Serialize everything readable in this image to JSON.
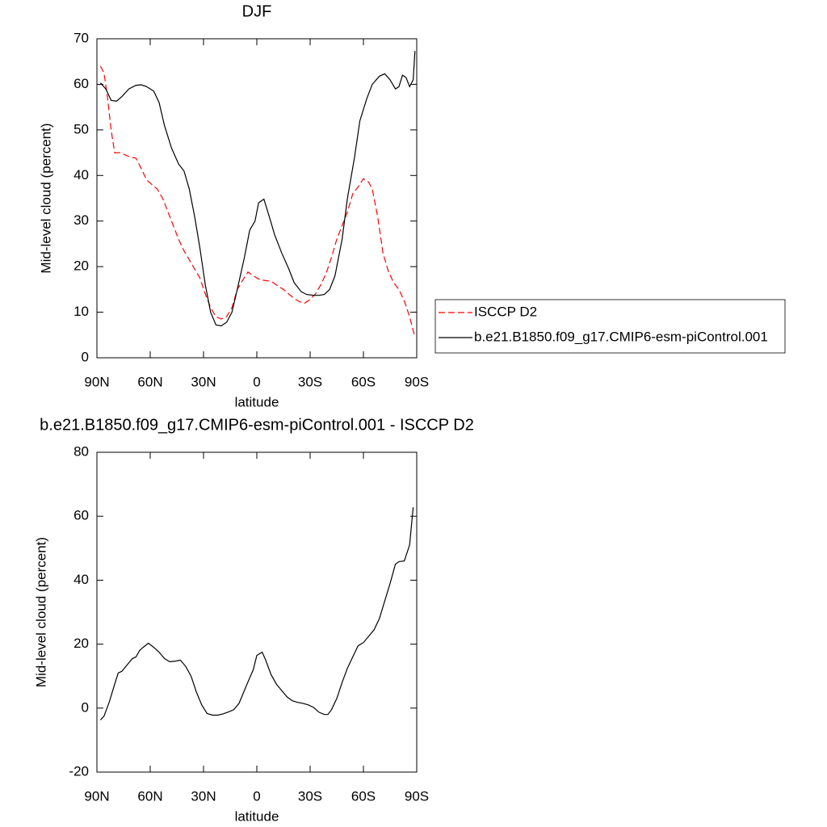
{
  "chart_data": [
    {
      "type": "line",
      "title": "DJF",
      "xlabel": "latitude",
      "ylabel": "Mid-level cloud (percent)",
      "xlim": [
        90,
        -90
      ],
      "xticks": [
        {
          "value": 90,
          "label": "90N"
        },
        {
          "value": 60,
          "label": "60N"
        },
        {
          "value": 30,
          "label": "30N"
        },
        0,
        {
          "value": -30,
          "label": "30S"
        },
        {
          "value": -60,
          "label": "60S"
        },
        {
          "value": -90,
          "label": "90S"
        }
      ],
      "ylim": [
        0,
        70
      ],
      "yticks": [
        0,
        10,
        20,
        30,
        40,
        50,
        60,
        70
      ],
      "legend": "right",
      "series": [
        {
          "name": "ISCCP D2",
          "color": "#ff0000",
          "dash": true,
          "x": [
            88,
            86,
            84,
            82,
            80,
            77,
            74,
            71,
            68,
            65,
            62,
            59,
            56,
            53,
            50,
            47,
            44,
            41,
            38,
            35,
            32,
            29,
            26,
            23,
            20,
            17,
            14,
            11,
            8,
            5,
            2,
            -1,
            -4,
            -8,
            -11,
            -15,
            -18,
            -21,
            -24,
            -27,
            -30,
            -33,
            -36,
            -39,
            -42,
            -45,
            -48,
            -51,
            -54,
            -57,
            -60,
            -63,
            -65,
            -68,
            -71,
            -74,
            -77,
            -80,
            -83,
            -86,
            -89
          ],
          "values": [
            64,
            62.5,
            57,
            50,
            45,
            45,
            44.5,
            44,
            43.8,
            41.5,
            39,
            38,
            37,
            35,
            32,
            29,
            26,
            23.5,
            21.5,
            19.5,
            17.5,
            14,
            11,
            9,
            8.5,
            9,
            11,
            15,
            17,
            18.8,
            18,
            17.3,
            17,
            16.8,
            16,
            15,
            14,
            13,
            12.3,
            12,
            12.8,
            14,
            16,
            18.5,
            22,
            26,
            29,
            32,
            36,
            37.5,
            39.3,
            38.5,
            37,
            31,
            23,
            19,
            16.5,
            15,
            12.5,
            9,
            4.5
          ]
        },
        {
          "name": "b.e21.B1850.f09_g17.CMIP6-esm-piControl.001",
          "color": "#000000",
          "dash": false,
          "x": [
            88,
            85,
            82,
            79,
            76,
            72,
            68,
            65,
            62,
            58,
            55,
            52,
            48,
            44,
            41,
            38,
            35,
            32,
            29,
            26,
            23,
            20,
            17,
            14,
            11,
            7,
            4,
            1,
            -1,
            -4,
            -7,
            -10,
            -14,
            -18,
            -21,
            -25,
            -28,
            -32,
            -35,
            -38,
            -41,
            -44,
            -48,
            -51,
            -55,
            -58,
            -62,
            -65,
            -69,
            -72,
            -75,
            -78,
            -80,
            -82,
            -84,
            -86,
            -88,
            -89
          ],
          "values": [
            60.3,
            59,
            56.5,
            56.3,
            57.3,
            59,
            59.8,
            59.9,
            59.5,
            58.5,
            56,
            51,
            46,
            42.5,
            41,
            37,
            31,
            24,
            16,
            10,
            7.2,
            7,
            7.8,
            10,
            15,
            22,
            28,
            30,
            34,
            34.8,
            31,
            27,
            23,
            19.5,
            16.5,
            14.5,
            13.9,
            13.7,
            13.7,
            13.9,
            15,
            18,
            26,
            35,
            44,
            52,
            57,
            60,
            61.8,
            62.3,
            61,
            59,
            59.5,
            62,
            61.5,
            59.5,
            61,
            67.3
          ]
        }
      ]
    },
    {
      "type": "line",
      "title": "b.e21.B1850.f09_g17.CMIP6-esm-piControl.001 - ISCCP D2",
      "xlabel": "latitude",
      "ylabel": "Mid-level cloud (percent)",
      "xlim": [
        90,
        -90
      ],
      "xticks": [
        {
          "value": 90,
          "label": "90N"
        },
        {
          "value": 60,
          "label": "60N"
        },
        {
          "value": 30,
          "label": "30N"
        },
        0,
        {
          "value": -30,
          "label": "30S"
        },
        {
          "value": -60,
          "label": "60S"
        },
        {
          "value": -90,
          "label": "90S"
        }
      ],
      "ylim": [
        -20,
        80
      ],
      "yticks": [
        -20,
        0,
        20,
        40,
        60,
        80
      ],
      "series": [
        {
          "color": "#000000",
          "dash": false,
          "x": [
            88,
            86,
            83,
            80,
            78,
            76,
            73,
            70,
            68,
            66,
            64,
            61,
            58,
            55,
            52,
            49,
            46,
            43,
            40,
            37,
            34,
            31,
            28,
            25,
            22,
            19,
            16,
            13,
            10,
            7,
            4,
            2,
            0,
            -3,
            -5,
            -8,
            -11,
            -14,
            -17,
            -20,
            -23,
            -26,
            -29,
            -32,
            -35,
            -38,
            -40,
            -42,
            -45,
            -48,
            -51,
            -54,
            -57,
            -60,
            -63,
            -66,
            -69,
            -72,
            -75,
            -78,
            -80,
            -83,
            -86,
            -88
          ],
          "values": [
            -3.7,
            -2.5,
            2,
            7.5,
            11,
            11.5,
            13.5,
            15.5,
            16,
            18,
            19,
            20.3,
            19,
            17.5,
            15.5,
            14.5,
            14.7,
            15,
            13,
            10,
            5,
            1,
            -1.7,
            -2.2,
            -2.2,
            -1.8,
            -1.2,
            -0.5,
            1.5,
            5.5,
            9.5,
            12,
            16.5,
            17.5,
            15,
            10.5,
            7.5,
            5.5,
            3.5,
            2.3,
            1.8,
            1.5,
            1,
            0.2,
            -1.3,
            -2,
            -2,
            -0.5,
            3,
            8,
            12.5,
            16,
            19.5,
            20.5,
            22.5,
            24.5,
            28,
            33.5,
            39,
            45,
            45.8,
            46,
            51,
            62.8
          ]
        }
      ]
    }
  ]
}
